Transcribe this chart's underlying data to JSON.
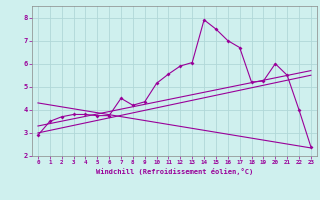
{
  "title": "",
  "xlabel": "Windchill (Refroidissement éolien,°C)",
  "ylabel": "",
  "bg_color": "#cff0ee",
  "line_color": "#990099",
  "xlim": [
    -0.5,
    23.5
  ],
  "ylim": [
    2,
    8.5
  ],
  "xticks": [
    0,
    1,
    2,
    3,
    4,
    5,
    6,
    7,
    8,
    9,
    10,
    11,
    12,
    13,
    14,
    15,
    16,
    17,
    18,
    19,
    20,
    21,
    22,
    23
  ],
  "yticks": [
    2,
    3,
    4,
    5,
    6,
    7,
    8
  ],
  "grid_color": "#b0d8d8",
  "line1_x": [
    0,
    1,
    2,
    3,
    4,
    5,
    6,
    7,
    8,
    9,
    10,
    11,
    12,
    13,
    14,
    15,
    16,
    17,
    18,
    19,
    20,
    21,
    22,
    23
  ],
  "line1_y": [
    2.9,
    3.5,
    3.7,
    3.8,
    3.8,
    3.75,
    3.75,
    4.5,
    4.2,
    4.35,
    5.15,
    5.55,
    5.9,
    6.05,
    7.9,
    7.5,
    7.0,
    6.7,
    5.2,
    5.25,
    6.0,
    5.5,
    4.0,
    2.4
  ],
  "line2_x": [
    0,
    23
  ],
  "line2_y": [
    3.0,
    5.5
  ],
  "line3_x": [
    0,
    23
  ],
  "line3_y": [
    3.3,
    5.7
  ],
  "line4_x": [
    0,
    23
  ],
  "line4_y": [
    4.3,
    2.35
  ]
}
